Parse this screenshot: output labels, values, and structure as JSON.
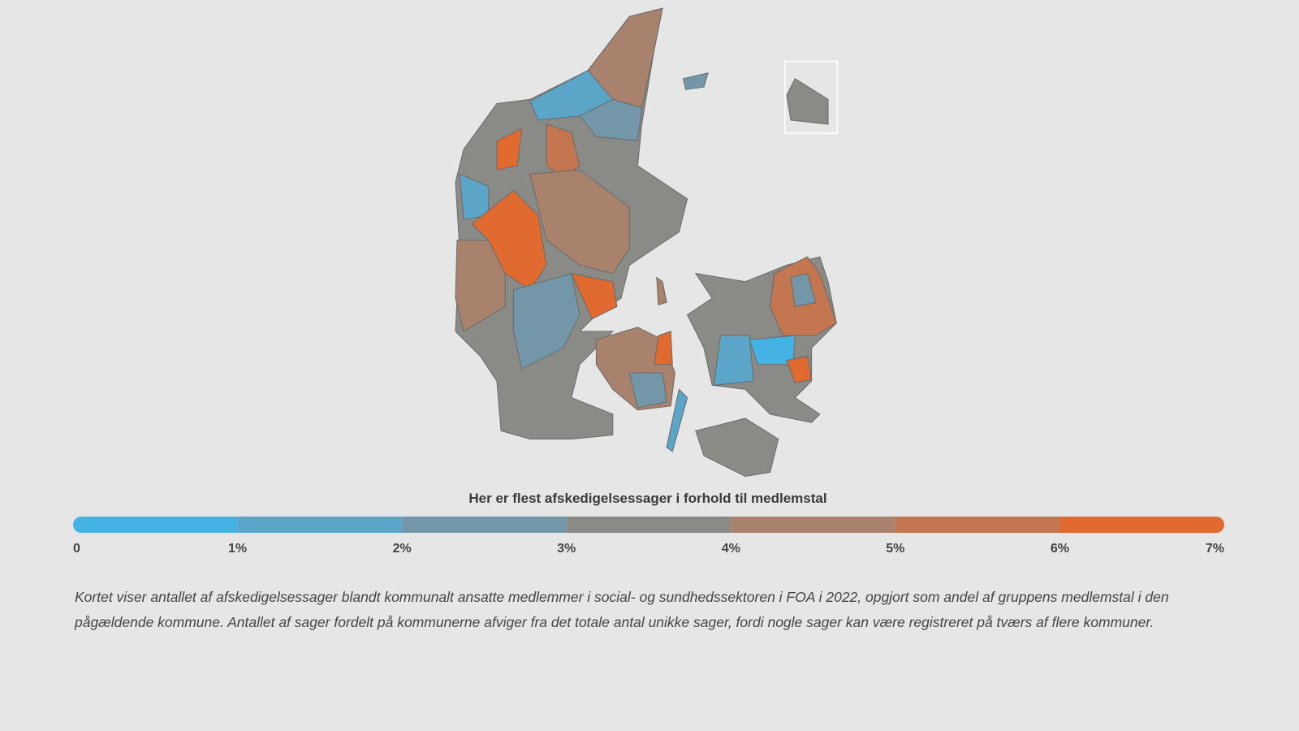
{
  "legend": {
    "title": "Her er flest afskedigelsessager i forhold til medlemstal",
    "ticks": [
      0,
      {
        "value": 1,
        "label": "1%"
      },
      {
        "value": 2,
        "label": "2%"
      },
      {
        "value": 3,
        "label": "3%"
      },
      {
        "value": 4,
        "label": "4%"
      },
      {
        "value": 5,
        "label": "5%"
      },
      {
        "value": 6,
        "label": "6%"
      },
      {
        "value": 7,
        "label": "7%"
      }
    ],
    "colors": [
      "#44b3e3",
      "#5aa5c8",
      "#7397a8",
      "#8a8a86",
      "#a8826d",
      "#c47650",
      "#e06a2f"
    ]
  },
  "caption": "Kortet viser antallet af afskedigelsessager blandt kommunalt ansatte medlemmer i social- og sundhedssektoren i FOA i 2022, opgjort som andel af gruppens medlemstal i den pågældende kommune. Antallet af sager fordelt på kommunerne afviger fra det totale antal unikke sager, fordi nogle sager kan være registreret på tværs af flere kommuner."
}
